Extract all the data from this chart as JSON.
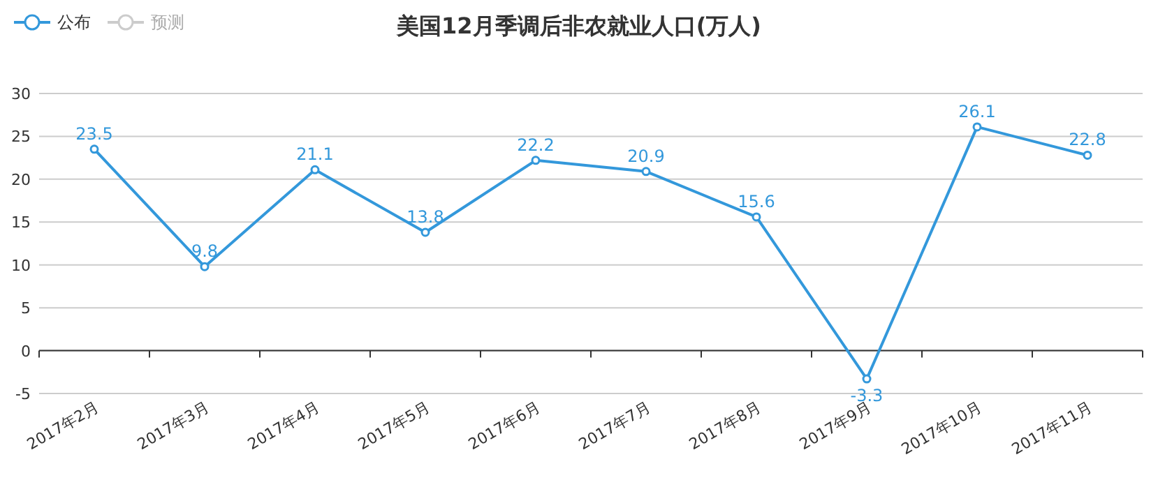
{
  "chart_data": {
    "type": "line",
    "title": "美国12月季调后非农就业人口(万人)",
    "categories": [
      "2017年2月",
      "2017年3月",
      "2017年4月",
      "2017年5月",
      "2017年6月",
      "2017年7月",
      "2017年8月",
      "2017年9月",
      "2017年10月",
      "2017年11月"
    ],
    "series": [
      {
        "name": "公布",
        "color": "#3398db",
        "values": [
          23.5,
          9.8,
          21.1,
          13.8,
          22.2,
          20.9,
          15.6,
          -3.3,
          26.1,
          22.8
        ]
      },
      {
        "name": "预测",
        "color": "#cccccc",
        "values": [
          null,
          null,
          null,
          null,
          null,
          null,
          null,
          null,
          null,
          null
        ]
      }
    ],
    "ylim": [
      -5,
      30
    ],
    "yticks": [
      -5,
      0,
      5,
      10,
      15,
      20,
      25,
      30
    ],
    "grid": "y",
    "legend": "top left",
    "marker": "circle",
    "data_labels": true
  }
}
